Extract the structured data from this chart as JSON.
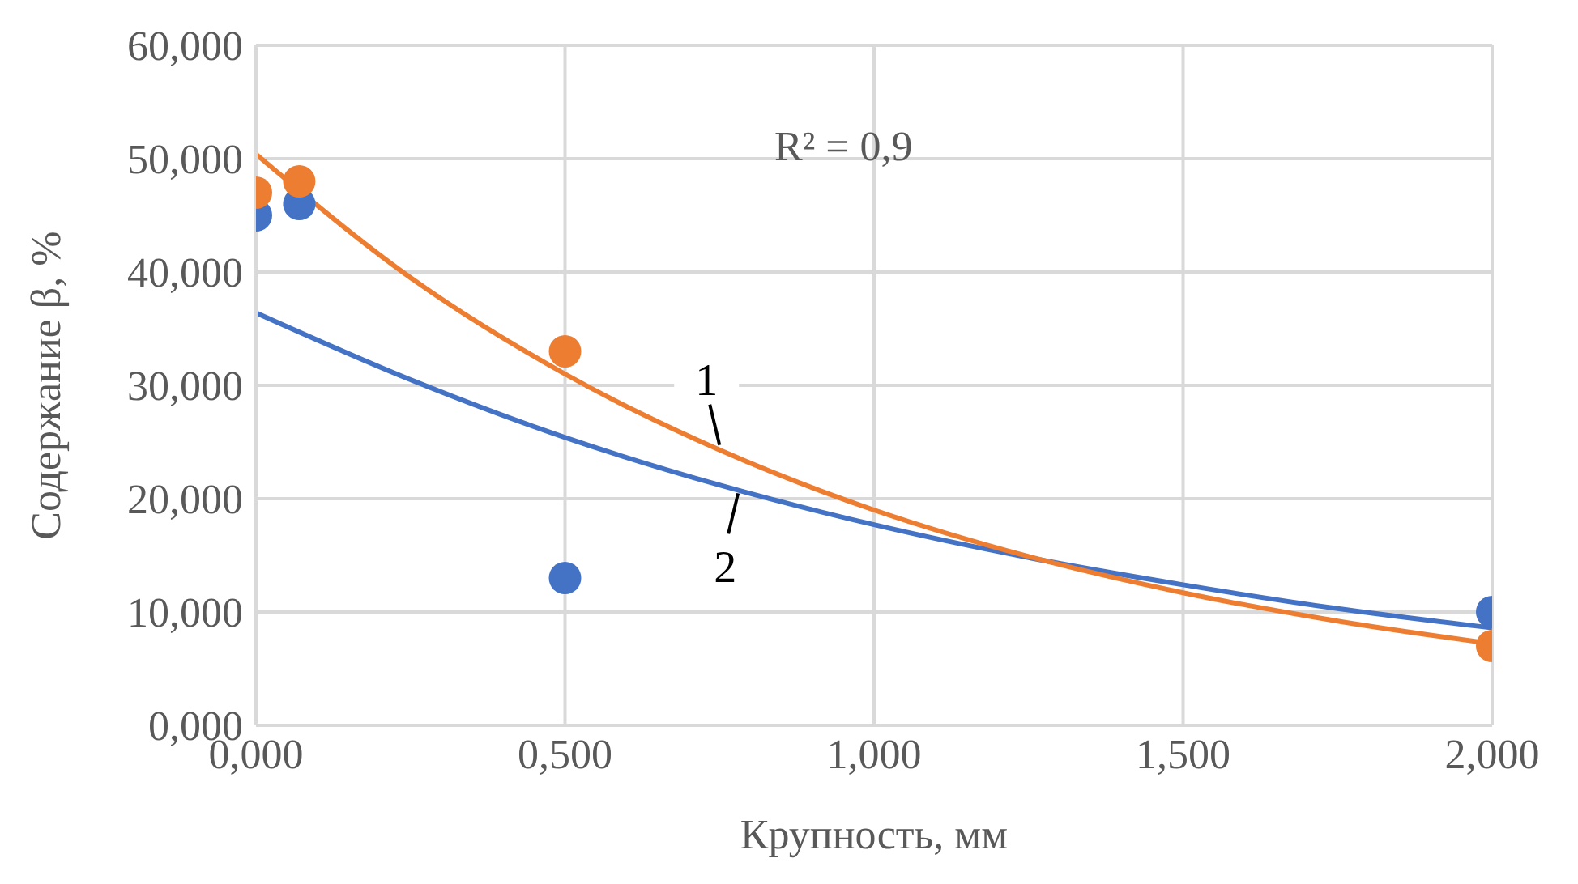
{
  "chart_data": {
    "type": "scatter",
    "xlabel": "Крупность, мм",
    "ylabel": "Содержание β, %",
    "xlim": [
      0,
      2
    ],
    "xticks": [
      {
        "value": 0,
        "label": "0,000"
      },
      {
        "value": 0.5,
        "label": "0,500"
      },
      {
        "value": 1,
        "label": "1,000"
      },
      {
        "value": 1.5,
        "label": "1,500"
      },
      {
        "value": 2,
        "label": "2,000"
      }
    ],
    "ylim": [
      0,
      60
    ],
    "yticks": [
      {
        "value": 0,
        "label": "0,000"
      },
      {
        "value": 10,
        "label": "10,000"
      },
      {
        "value": 20,
        "label": "20,000"
      },
      {
        "value": 30,
        "label": "30,000"
      },
      {
        "value": 40,
        "label": "40,000"
      },
      {
        "value": 50,
        "label": "50,000"
      },
      {
        "value": 60,
        "label": "60,000"
      }
    ],
    "grid": true,
    "marker": "circle",
    "series": [
      {
        "color": "#4472c4",
        "x": [
          0,
          0.07,
          0.5,
          2
        ],
        "values": [
          45,
          46,
          13,
          10
        ]
      },
      {
        "color": "#ed7d31",
        "x": [
          0,
          0.07,
          0.5,
          2
        ],
        "values": [
          47,
          48,
          33,
          7
        ]
      },
      {
        "type": "line",
        "color": "#4472c4",
        "marker": "none",
        "x": [
          0,
          0.25,
          0.5,
          0.75,
          1,
          1.25,
          1.5,
          1.75,
          2
        ],
        "values": [
          36.4,
          30.5,
          25.4,
          21.2,
          17.7,
          14.8,
          12.4,
          10.3,
          8.6
        ]
      },
      {
        "type": "line",
        "color": "#ed7d31",
        "marker": "none",
        "x": [
          0,
          0.25,
          0.5,
          0.75,
          1,
          1.25,
          1.5,
          1.75,
          2
        ],
        "values": [
          50.4,
          39.5,
          31,
          24.3,
          19,
          14.9,
          11.7,
          9.2,
          7.2
        ]
      }
    ],
    "annotations": [
      "R² = 0,9",
      {
        "text": "1",
        "x": 0.75,
        "y": 24.3
      },
      {
        "text": "2",
        "x": 0.78,
        "y": 20.9
      }
    ]
  }
}
